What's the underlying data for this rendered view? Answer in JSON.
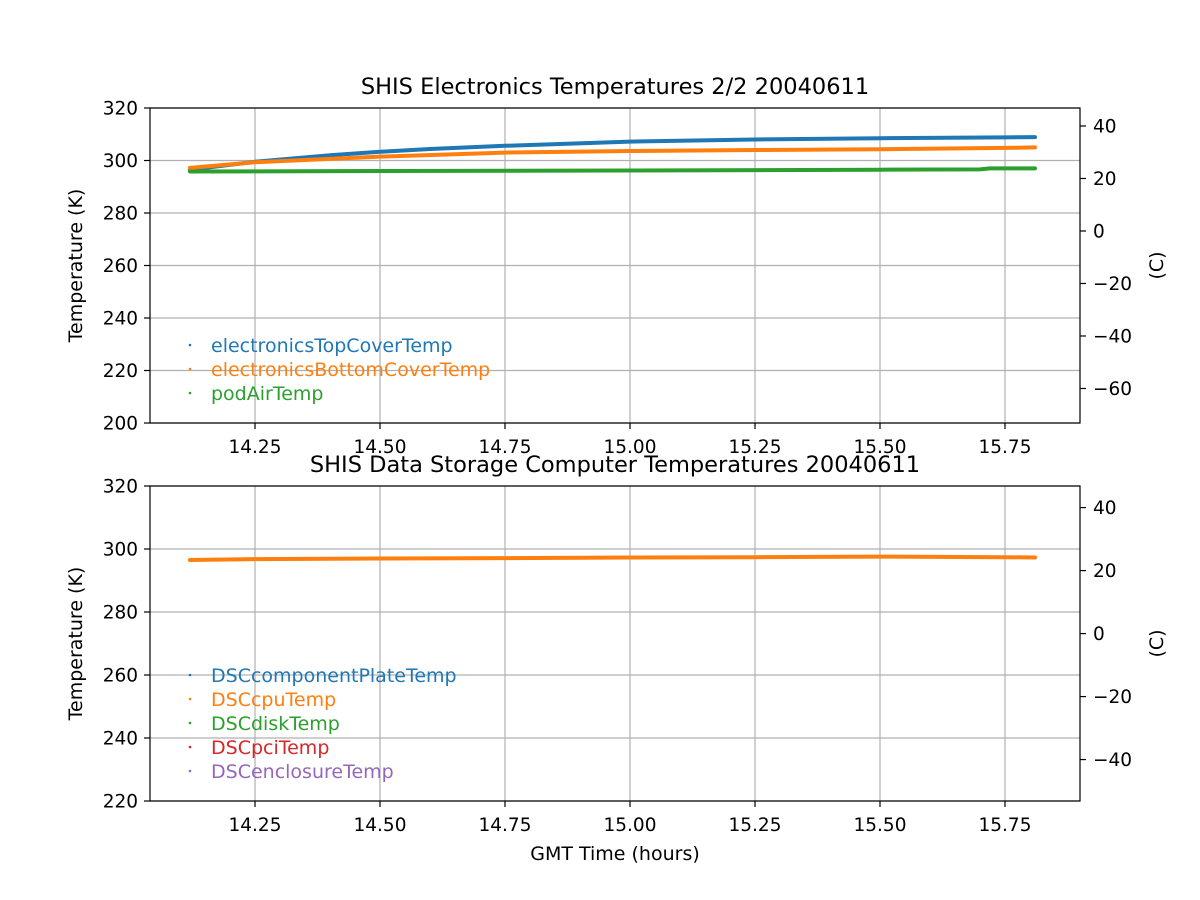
{
  "chart_data": [
    {
      "type": "scatter",
      "title": "SHIS Electronics Temperatures 2/2 20040611",
      "xlabel": "",
      "ylabel": "Temperature (K)",
      "y2label": "(C)",
      "xlim": [
        14.04,
        15.9
      ],
      "ylim": [
        200,
        320
      ],
      "x_ticks": [
        14.25,
        14.5,
        14.75,
        15.0,
        15.25,
        15.5,
        15.75
      ],
      "x_tick_labels": [
        "14.25",
        "14.50",
        "14.75",
        "15.00",
        "15.25",
        "15.50",
        "15.75"
      ],
      "y_ticks": [
        200,
        220,
        240,
        260,
        280,
        300,
        320
      ],
      "y_tick_labels": [
        "200",
        "220",
        "240",
        "260",
        "280",
        "300",
        "320"
      ],
      "y2_ticks": [
        -60,
        -40,
        -20,
        0,
        20,
        40
      ],
      "y2_tick_labels": [
        "−60",
        "−40",
        "−20",
        "0",
        "20",
        "40"
      ],
      "grid": true,
      "legend_position": "lower-left",
      "series": [
        {
          "name": "electronicsTopCoverTemp",
          "color": "#1f77b4",
          "x": [
            14.12,
            14.25,
            14.4,
            14.5,
            14.6,
            14.75,
            15.0,
            15.25,
            15.5,
            15.75,
            15.81
          ],
          "y": [
            296.5,
            299.5,
            302,
            303.3,
            304.4,
            305.6,
            307.2,
            308,
            308.5,
            308.8,
            308.9
          ]
        },
        {
          "name": "electronicsBottomCoverTemp",
          "color": "#ff7f0e",
          "x": [
            14.12,
            14.25,
            14.5,
            14.75,
            15.0,
            15.25,
            15.5,
            15.75,
            15.81
          ],
          "y": [
            297.2,
            299.3,
            301.5,
            303,
            303.6,
            304,
            304.3,
            304.8,
            305
          ]
        },
        {
          "name": "podAirTemp",
          "color": "#2ca02c",
          "x": [
            14.12,
            14.5,
            15.0,
            15.5,
            15.7,
            15.72,
            15.81
          ],
          "y": [
            295.8,
            296,
            296.2,
            296.5,
            296.6,
            297,
            297
          ]
        }
      ]
    },
    {
      "type": "scatter",
      "title": "SHIS Data Storage Computer Temperatures 20040611",
      "xlabel": "GMT Time (hours)",
      "ylabel": "Temperature (K)",
      "y2label": "(C)",
      "xlim": [
        14.04,
        15.9
      ],
      "ylim": [
        220,
        320
      ],
      "x_ticks": [
        14.25,
        14.5,
        14.75,
        15.0,
        15.25,
        15.5,
        15.75
      ],
      "x_tick_labels": [
        "14.25",
        "14.50",
        "14.75",
        "15.00",
        "15.25",
        "15.50",
        "15.75"
      ],
      "y_ticks": [
        220,
        240,
        260,
        280,
        300,
        320
      ],
      "y_tick_labels": [
        "220",
        "240",
        "260",
        "280",
        "300",
        "320"
      ],
      "y2_ticks": [
        -40,
        -20,
        0,
        20,
        40
      ],
      "y2_tick_labels": [
        "−40",
        "−20",
        "0",
        "20",
        "40"
      ],
      "grid": true,
      "legend_position": "lower-left",
      "series": [
        {
          "name": "DSCcomponentPlateTemp",
          "color": "#1f77b4",
          "x": [],
          "y": []
        },
        {
          "name": "DSCcpuTemp",
          "color": "#ff7f0e",
          "x": [
            14.12,
            14.25,
            14.5,
            14.75,
            15.0,
            15.25,
            15.5,
            15.75,
            15.81
          ],
          "y": [
            296.5,
            296.8,
            297,
            297.1,
            297.3,
            297.4,
            297.6,
            297.4,
            297.3
          ]
        },
        {
          "name": "DSCdiskTemp",
          "color": "#2ca02c",
          "x": [],
          "y": []
        },
        {
          "name": "DSCpciTemp",
          "color": "#d62728",
          "x": [],
          "y": []
        },
        {
          "name": "DSCenclosureTemp",
          "color": "#9467bd",
          "x": [],
          "y": []
        }
      ]
    }
  ]
}
